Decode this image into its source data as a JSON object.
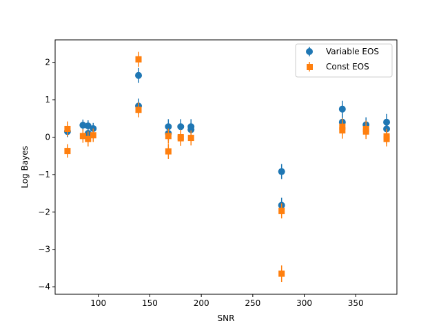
{
  "chart_data": {
    "type": "scatter",
    "xlabel": "SNR",
    "ylabel": "Log Bayes",
    "xlim": [
      58,
      390
    ],
    "ylim": [
      -4.2,
      2.6
    ],
    "xticks": [
      100,
      150,
      200,
      250,
      300,
      350
    ],
    "yticks": [
      -4,
      -3,
      -2,
      -1,
      0,
      1,
      2
    ],
    "legend_position": "top-right",
    "series": [
      {
        "name": "Variable EOS",
        "marker": "circle",
        "color": "#1f77b4",
        "points": [
          {
            "x": 70,
            "y": 0.15,
            "err": 0.15
          },
          {
            "x": 85,
            "y": 0.32,
            "err": 0.15
          },
          {
            "x": 90,
            "y": 0.3,
            "err": 0.15
          },
          {
            "x": 90,
            "y": 0.1,
            "err": 0.15
          },
          {
            "x": 95,
            "y": 0.23,
            "err": 0.15
          },
          {
            "x": 139,
            "y": 1.65,
            "err": 0.2
          },
          {
            "x": 139,
            "y": 0.83,
            "err": 0.2
          },
          {
            "x": 168,
            "y": 0.28,
            "err": 0.2
          },
          {
            "x": 168,
            "y": 0.1,
            "err": 0.2
          },
          {
            "x": 180,
            "y": 0.28,
            "err": 0.2
          },
          {
            "x": 190,
            "y": 0.28,
            "err": 0.2
          },
          {
            "x": 190,
            "y": 0.2,
            "err": 0.2
          },
          {
            "x": 278,
            "y": -0.92,
            "err": 0.2
          },
          {
            "x": 278,
            "y": -1.82,
            "err": 0.2
          },
          {
            "x": 337,
            "y": 0.75,
            "err": 0.22
          },
          {
            "x": 337,
            "y": 0.4,
            "err": 0.22
          },
          {
            "x": 360,
            "y": 0.33,
            "err": 0.2
          },
          {
            "x": 380,
            "y": 0.4,
            "err": 0.22
          },
          {
            "x": 380,
            "y": 0.22,
            "err": 0.22
          }
        ]
      },
      {
        "name": "Const EOS",
        "marker": "square",
        "color": "#ff7f0e",
        "points": [
          {
            "x": 70,
            "y": 0.22,
            "err": 0.2
          },
          {
            "x": 70,
            "y": -0.37,
            "err": 0.18
          },
          {
            "x": 85,
            "y": 0.03,
            "err": 0.18
          },
          {
            "x": 90,
            "y": -0.05,
            "err": 0.2
          },
          {
            "x": 95,
            "y": 0.05,
            "err": 0.18
          },
          {
            "x": 139,
            "y": 2.08,
            "err": 0.2
          },
          {
            "x": 139,
            "y": 0.73,
            "err": 0.2
          },
          {
            "x": 168,
            "y": 0.03,
            "err": 0.2
          },
          {
            "x": 168,
            "y": -0.38,
            "err": 0.2
          },
          {
            "x": 180,
            "y": 0.0,
            "err": 0.2
          },
          {
            "x": 180,
            "y": -0.03,
            "err": 0.2
          },
          {
            "x": 190,
            "y": -0.02,
            "err": 0.2
          },
          {
            "x": 278,
            "y": -1.97,
            "err": 0.2
          },
          {
            "x": 278,
            "y": -3.65,
            "err": 0.22
          },
          {
            "x": 337,
            "y": 0.28,
            "err": 0.22
          },
          {
            "x": 337,
            "y": 0.18,
            "err": 0.22
          },
          {
            "x": 360,
            "y": 0.22,
            "err": 0.22
          },
          {
            "x": 360,
            "y": 0.15,
            "err": 0.2
          },
          {
            "x": 380,
            "y": 0.02,
            "err": 0.2
          },
          {
            "x": 380,
            "y": -0.05,
            "err": 0.2
          }
        ]
      }
    ]
  }
}
